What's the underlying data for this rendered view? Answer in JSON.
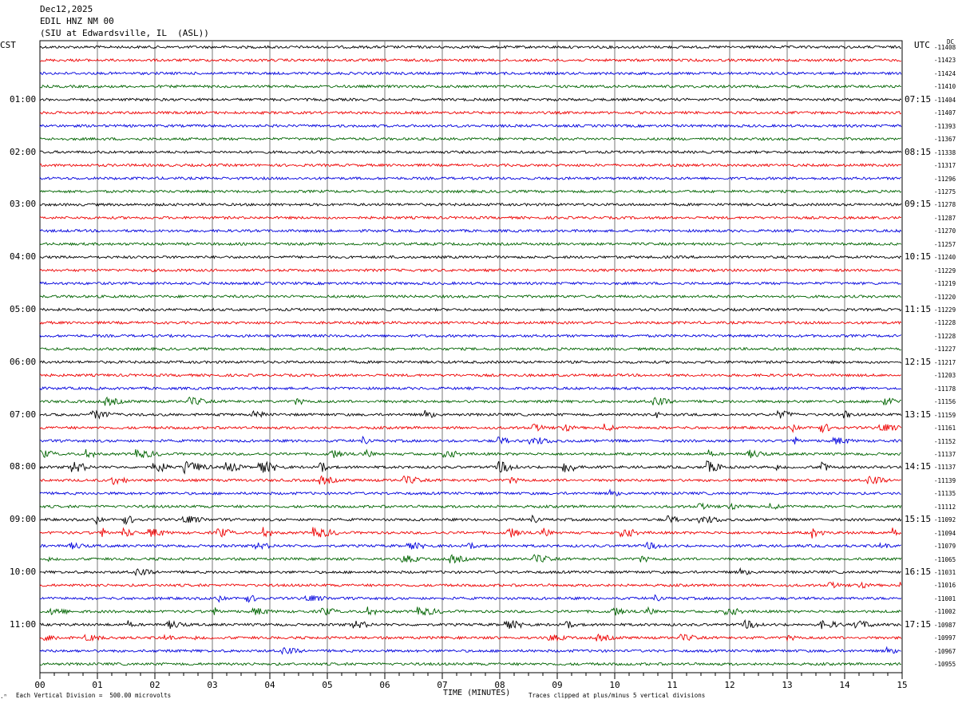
{
  "header": {
    "date": "Dec12,2025",
    "channel": "EDIL HNZ NM 00",
    "station": "(SIU at Edwardsville, IL  (ASL))"
  },
  "left_timezone": "CST",
  "right_timezone": "UTC",
  "dc_label": "DC",
  "footer": {
    "scale": "Each Vertical Division =  500.00 microvolts",
    "clip": "Traces clipped at plus/minus 5 vertical divisions"
  },
  "chart_data": {
    "type": "line",
    "xlabel": "TIME (MINUTES)",
    "xlim": [
      0,
      15
    ],
    "x_ticks": [
      "00",
      "01",
      "02",
      "03",
      "04",
      "05",
      "06",
      "07",
      "08",
      "09",
      "10",
      "11",
      "12",
      "13",
      "14",
      "15"
    ],
    "left_hour_labels": [
      "01:00",
      "02:00",
      "03:00",
      "04:00",
      "05:00",
      "06:00",
      "07:00",
      "08:00",
      "09:00",
      "10:00",
      "11:00"
    ],
    "right_hour_labels": [
      "07:15",
      "08:15",
      "09:15",
      "10:15",
      "11:15",
      "12:15",
      "13:15",
      "14:15",
      "15:15",
      "16:15",
      "17:15"
    ],
    "trace_colors": [
      "#000000",
      "#ee0000",
      "#0000dd",
      "#006400"
    ],
    "dc_offsets": [
      -11408,
      -11423,
      -11424,
      -11410,
      -11404,
      -11407,
      -11393,
      -11367,
      -11338,
      -11317,
      -11296,
      -11275,
      -11278,
      -11287,
      -11270,
      -11257,
      -11240,
      -11229,
      -11219,
      -11220,
      -11229,
      -11228,
      -11228,
      -11227,
      -11217,
      -11203,
      -11178,
      -11156,
      -11159,
      -11161,
      -11152,
      -11137,
      -11137,
      -11139,
      -11135,
      -11112,
      -11092,
      -11094,
      -11079,
      -11065,
      -11031,
      -11016,
      -11001,
      -11002,
      -10987,
      -10997,
      -10967,
      -10955
    ],
    "trace_activity": [
      1,
      1,
      1,
      1,
      1,
      1,
      1,
      1,
      1,
      1,
      1,
      1,
      1,
      1,
      1,
      1,
      1,
      1,
      1,
      1,
      1,
      1,
      1,
      1,
      1,
      1,
      1,
      2,
      2,
      2,
      2,
      2,
      3,
      2,
      1.5,
      1.5,
      2,
      2.5,
      1.5,
      2,
      1.5,
      1.5,
      1.5,
      2,
      2,
      1.5,
      1.5,
      1.5
    ]
  }
}
